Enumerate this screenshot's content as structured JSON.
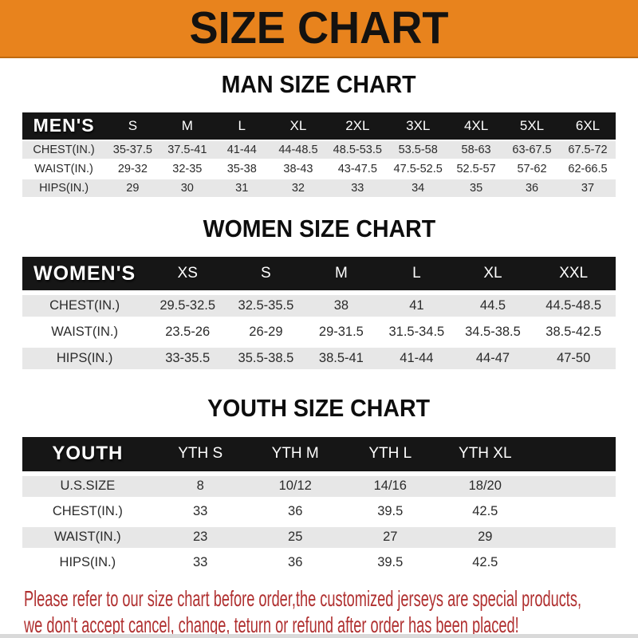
{
  "banner": {
    "title": "SIZE CHART"
  },
  "colors": {
    "banner_orange": "#E8831D",
    "banner_border": "#C06A10",
    "header_black": "#161616",
    "row_gray": "#E7E7E7",
    "footer_red": "#B03030",
    "bottom_strip": "#D9D9D9"
  },
  "sections": [
    {
      "heading": "MAN SIZE CHART"
    },
    {
      "heading": "WOMEN SIZE CHART"
    },
    {
      "heading": "YOUTH SIZE CHART"
    }
  ],
  "tables": [
    {
      "header_label": "MEN'S",
      "columns": [
        "S",
        "M",
        "L",
        "XL",
        "2XL",
        "3XL",
        "4XL",
        "5XL",
        "6XL"
      ],
      "rows": [
        {
          "label": "CHEST(IN.)",
          "values": [
            "35-37.5",
            "37.5-41",
            "41-44",
            "44-48.5",
            "48.5-53.5",
            "53.5-58",
            "58-63",
            "63-67.5",
            "67.5-72"
          ]
        },
        {
          "label": "WAIST(IN.)",
          "values": [
            "29-32",
            "32-35",
            "35-38",
            "38-43",
            "43-47.5",
            "47.5-52.5",
            "52.5-57",
            "57-62",
            "62-66.5"
          ]
        },
        {
          "label": "HIPS(IN.)",
          "values": [
            "29",
            "30",
            "31",
            "32",
            "33",
            "34",
            "35",
            "36",
            "37"
          ]
        }
      ]
    },
    {
      "header_label": "WOMEN'S",
      "columns": [
        "XS",
        "S",
        "M",
        "L",
        "XL",
        "XXL"
      ],
      "rows": [
        {
          "label": "CHEST(IN.)",
          "values": [
            "29.5-32.5",
            "32.5-35.5",
            "38",
            "41",
            "44.5",
            "44.5-48.5"
          ]
        },
        {
          "label": "WAIST(IN.)",
          "values": [
            "23.5-26",
            "26-29",
            "29-31.5",
            "31.5-34.5",
            "34.5-38.5",
            "38.5-42.5"
          ]
        },
        {
          "label": "HIPS(IN.)",
          "values": [
            "33-35.5",
            "35.5-38.5",
            "38.5-41",
            "41-44",
            "44-47",
            "47-50"
          ]
        }
      ]
    },
    {
      "header_label": "YOUTH",
      "columns": [
        "YTH S",
        "YTH M",
        "YTH L",
        "YTH XL"
      ],
      "rows": [
        {
          "label": "U.S.SIZE",
          "values": [
            "8",
            "10/12",
            "14/16",
            "18/20"
          ]
        },
        {
          "label": "CHEST(IN.)",
          "values": [
            "33",
            "36",
            "39.5",
            "42.5"
          ]
        },
        {
          "label": "WAIST(IN.)",
          "values": [
            "23",
            "25",
            "27",
            "29"
          ]
        },
        {
          "label": "HIPS(IN.)",
          "values": [
            "33",
            "36",
            "39.5",
            "42.5"
          ]
        }
      ]
    }
  ],
  "footer": {
    "line1": "Please refer to our size chart before order,the customized jerseys are special products,",
    "line2": "we don't accept cancel, change, teturn or refund after order has been placed!"
  }
}
